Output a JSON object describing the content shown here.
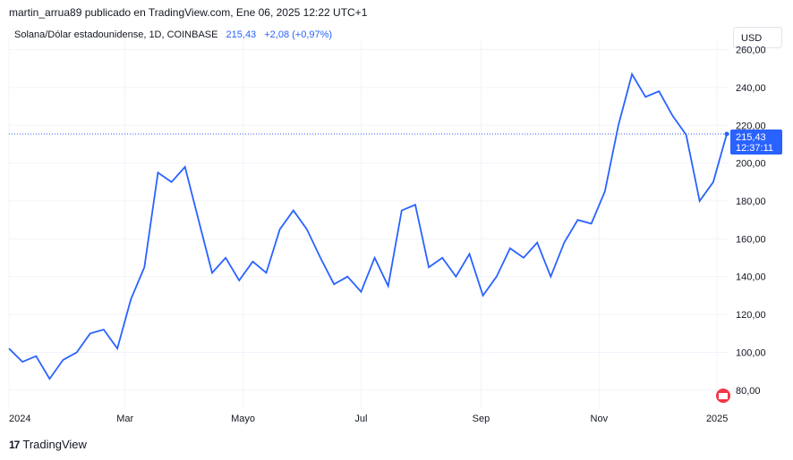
{
  "header": {
    "text": "martin_arrua89 publicado en TradingView.com, Ene 06, 2025 12:22 UTC+1"
  },
  "symbol": {
    "name": "Solana/Dólar estadounidense, 1D, COINBASE",
    "price": "215,43",
    "change": "+2,08 (+0,97%)"
  },
  "currency_button": {
    "label": "USD"
  },
  "badge": {
    "price": "215,43",
    "time": "12:37:11"
  },
  "footer": {
    "logo_text": "17",
    "brand": "TradingView"
  },
  "colors": {
    "line": "#2962ff",
    "grid": "#f0f3fa",
    "badge_bg": "#2962ff"
  },
  "chart_data": {
    "type": "line",
    "series": [
      {
        "x": [
          "2024-01-01",
          "2024-01-08",
          "2024-01-15",
          "2024-01-22",
          "2024-01-29",
          "2024-02-05",
          "2024-02-12",
          "2024-02-19",
          "2024-02-26",
          "2024-03-04",
          "2024-03-11",
          "2024-03-18",
          "2024-03-25",
          "2024-04-01",
          "2024-04-08",
          "2024-04-15",
          "2024-04-22",
          "2024-04-29",
          "2024-05-06",
          "2024-05-13",
          "2024-05-20",
          "2024-05-27",
          "2024-06-03",
          "2024-06-10",
          "2024-06-17",
          "2024-06-24",
          "2024-07-01",
          "2024-07-08",
          "2024-07-15",
          "2024-07-22",
          "2024-07-29",
          "2024-08-05",
          "2024-08-12",
          "2024-08-19",
          "2024-08-26",
          "2024-09-02",
          "2024-09-09",
          "2024-09-16",
          "2024-09-23",
          "2024-09-30",
          "2024-10-07",
          "2024-10-14",
          "2024-10-21",
          "2024-10-28",
          "2024-11-04",
          "2024-11-11",
          "2024-11-18",
          "2024-11-25",
          "2024-12-02",
          "2024-12-09",
          "2024-12-16",
          "2024-12-23",
          "2024-12-30",
          "2025-01-06"
        ],
        "values": [
          102,
          95,
          98,
          86,
          96,
          100,
          110,
          112,
          102,
          128,
          145,
          195,
          190,
          198,
          170,
          142,
          150,
          138,
          148,
          142,
          165,
          175,
          165,
          150,
          136,
          140,
          132,
          150,
          135,
          175,
          178,
          145,
          150,
          140,
          152,
          130,
          140,
          155,
          150,
          158,
          140,
          158,
          170,
          168,
          185,
          220,
          247,
          235,
          238,
          225,
          215,
          180,
          190,
          215.43
        ]
      }
    ],
    "yticks": [
      "80,00",
      "100,00",
      "120,00",
      "140,00",
      "160,00",
      "180,00",
      "200,00",
      "220,00",
      "240,00",
      "260,00"
    ],
    "xticks": [
      "2024",
      "Mar",
      "Mayo",
      "Jul",
      "Sep",
      "Nov",
      "2025"
    ],
    "ylim": [
      70,
      265
    ],
    "grid": true,
    "last_price": 215.43
  }
}
